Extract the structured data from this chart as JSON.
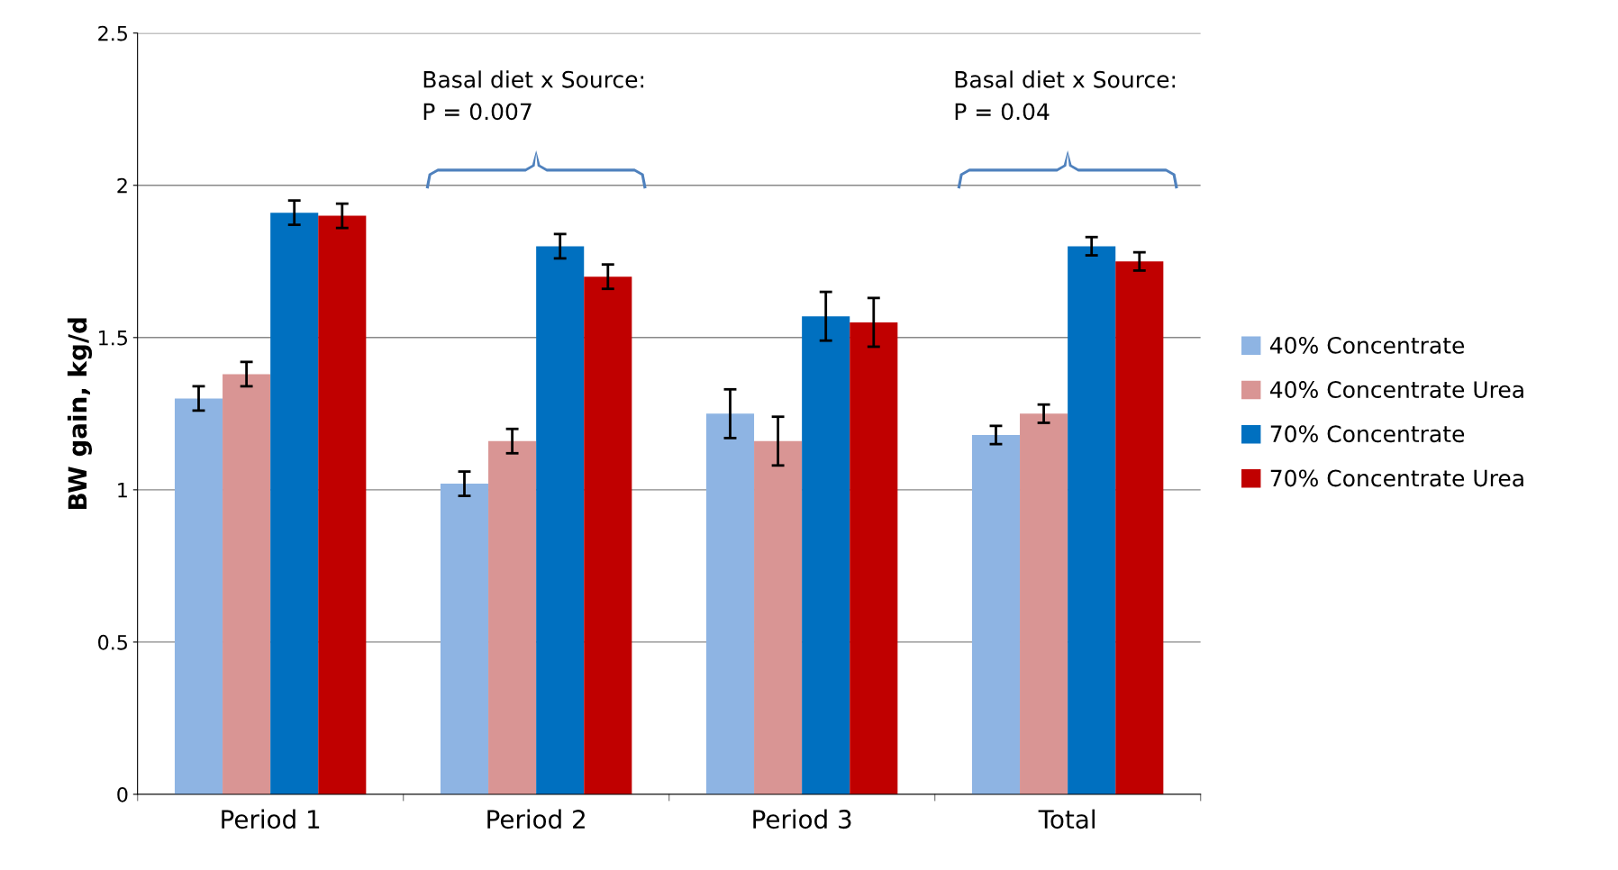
{
  "chart_data": {
    "type": "bar",
    "ylabel": "BW gain, kg/d",
    "categories": [
      "Period 1",
      "Period 2",
      "Period 3",
      "Total"
    ],
    "series": [
      {
        "name": "40% Concentrate",
        "color": "#8eb4e3",
        "values": [
          1.3,
          1.02,
          1.25,
          1.18
        ],
        "errors": [
          0.04,
          0.04,
          0.08,
          0.03
        ]
      },
      {
        "name": "40% Concentrate Urea",
        "color": "#d99594",
        "values": [
          1.38,
          1.16,
          1.16,
          1.25
        ],
        "errors": [
          0.04,
          0.04,
          0.08,
          0.03
        ]
      },
      {
        "name": "70% Concentrate",
        "color": "#0070c0",
        "values": [
          1.91,
          1.8,
          1.57,
          1.8
        ],
        "errors": [
          0.04,
          0.04,
          0.08,
          0.03
        ]
      },
      {
        "name": "70% Concentrate Urea",
        "color": "#c00000",
        "values": [
          1.9,
          1.7,
          1.55,
          1.75
        ],
        "errors": [
          0.04,
          0.04,
          0.08,
          0.03
        ]
      }
    ],
    "ylim": [
      0,
      2.5
    ],
    "yticks": [
      0,
      0.5,
      1,
      1.5,
      2,
      2.5
    ],
    "grid": "y",
    "legend": "right",
    "annotations": [
      "Basal diet x Source:\nP = 0.007",
      "Basal diet x Source:\nP = 0.04"
    ]
  }
}
